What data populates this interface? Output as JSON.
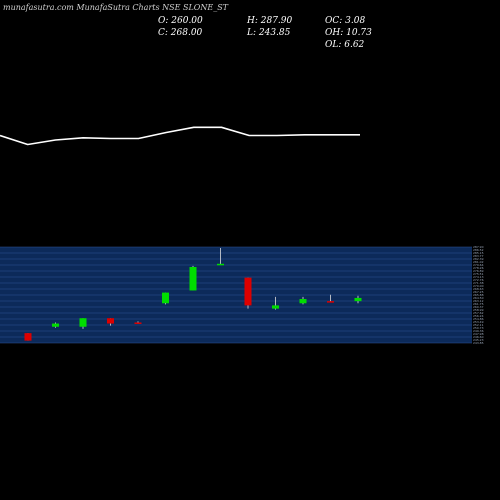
{
  "watermark": "munafasutra.com MunafaSutra Charts NSE SLONE_ST",
  "stats": {
    "open": "O: 260.00",
    "close": "C: 268.00",
    "high": "H: 287.90",
    "low": "L: 243.85",
    "oc": "OC: 3.08",
    "oh": "OH: 10.73",
    "ol": "OL: 6.62"
  },
  "colors": {
    "background": "#000000",
    "up": "#00dd00",
    "down": "#dd0000",
    "band": "#0c2a5a",
    "grid": "#2e5596",
    "line": "#ffffff"
  },
  "chart_data": [
    {
      "type": "line",
      "values": [
        263.0,
        257.0,
        260.0,
        261.5,
        261.0,
        261.0,
        265.0,
        268.5,
        268.5,
        263.0,
        263.0,
        263.5,
        263.5,
        263.5
      ],
      "ylim": [
        240,
        290
      ]
    },
    {
      "type": "candlestick",
      "ylim": [
        243.85,
        287.9
      ],
      "candles": [
        {
          "open": 248.0,
          "close": 244.5,
          "high": 248.0,
          "low": 244.5,
          "dir": "down"
        },
        {
          "open": 251.0,
          "close": 252.5,
          "high": 253.0,
          "low": 250.5,
          "dir": "up"
        },
        {
          "open": 251.0,
          "close": 255.0,
          "high": 255.0,
          "low": 250.0,
          "dir": "up"
        },
        {
          "open": 255.0,
          "close": 252.5,
          "high": 255.0,
          "low": 251.5,
          "dir": "down"
        },
        {
          "open": 253.0,
          "close": 253.0,
          "high": 253.5,
          "low": 252.5,
          "dir": "down"
        },
        {
          "open": 262.0,
          "close": 267.0,
          "high": 267.0,
          "low": 261.5,
          "dir": "up"
        },
        {
          "open": 268.0,
          "close": 279.0,
          "high": 279.5,
          "low": 268.0,
          "dir": "up"
        },
        {
          "open": 280.0,
          "close": 280.5,
          "high": 287.9,
          "low": 280.0,
          "dir": "up"
        },
        {
          "open": 274.0,
          "close": 261.0,
          "high": 274.0,
          "low": 259.5,
          "dir": "down"
        },
        {
          "open": 259.5,
          "close": 261.0,
          "high": 265.0,
          "low": 259.0,
          "dir": "up"
        },
        {
          "open": 262.0,
          "close": 264.0,
          "high": 265.0,
          "low": 261.5,
          "dir": "up"
        },
        {
          "open": 263.0,
          "close": 263.0,
          "high": 266.0,
          "low": 262.5,
          "dir": "down"
        },
        {
          "open": 263.0,
          "close": 264.5,
          "high": 265.5,
          "low": 262.0,
          "dir": "up"
        }
      ]
    }
  ]
}
